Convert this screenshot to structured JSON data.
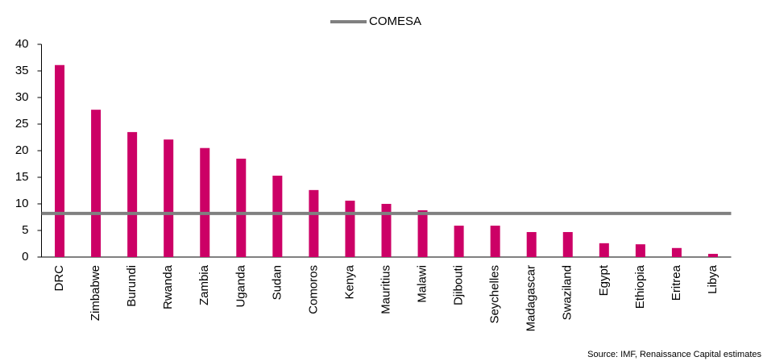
{
  "chart_data": {
    "type": "bar",
    "categories": [
      "DRC",
      "Zimbabwe",
      "Burundi",
      "Rwanda",
      "Zambia",
      "Uganda",
      "Sudan",
      "Comoros",
      "Kenya",
      "Mauritius",
      "Malawi",
      "Djibouti",
      "Seychelles",
      "Madagascar",
      "Swaziland",
      "Egypt",
      "Ethiopia",
      "Eritrea",
      "Libya"
    ],
    "values": [
      36.1,
      27.7,
      23.5,
      22.1,
      20.5,
      18.5,
      15.3,
      12.6,
      10.6,
      10.0,
      8.8,
      5.9,
      5.9,
      4.7,
      4.7,
      2.6,
      2.4,
      1.7,
      0.6
    ],
    "color": "#cc0066",
    "reference_line": {
      "name": "COMESA",
      "value": 8.2,
      "color": "#808080"
    },
    "ylim": [
      0,
      40
    ],
    "yticks": [
      0,
      5,
      10,
      15,
      20,
      25,
      30,
      35,
      40
    ],
    "grid": false,
    "source": "Source: IMF, Renaissance Capital estimates"
  }
}
